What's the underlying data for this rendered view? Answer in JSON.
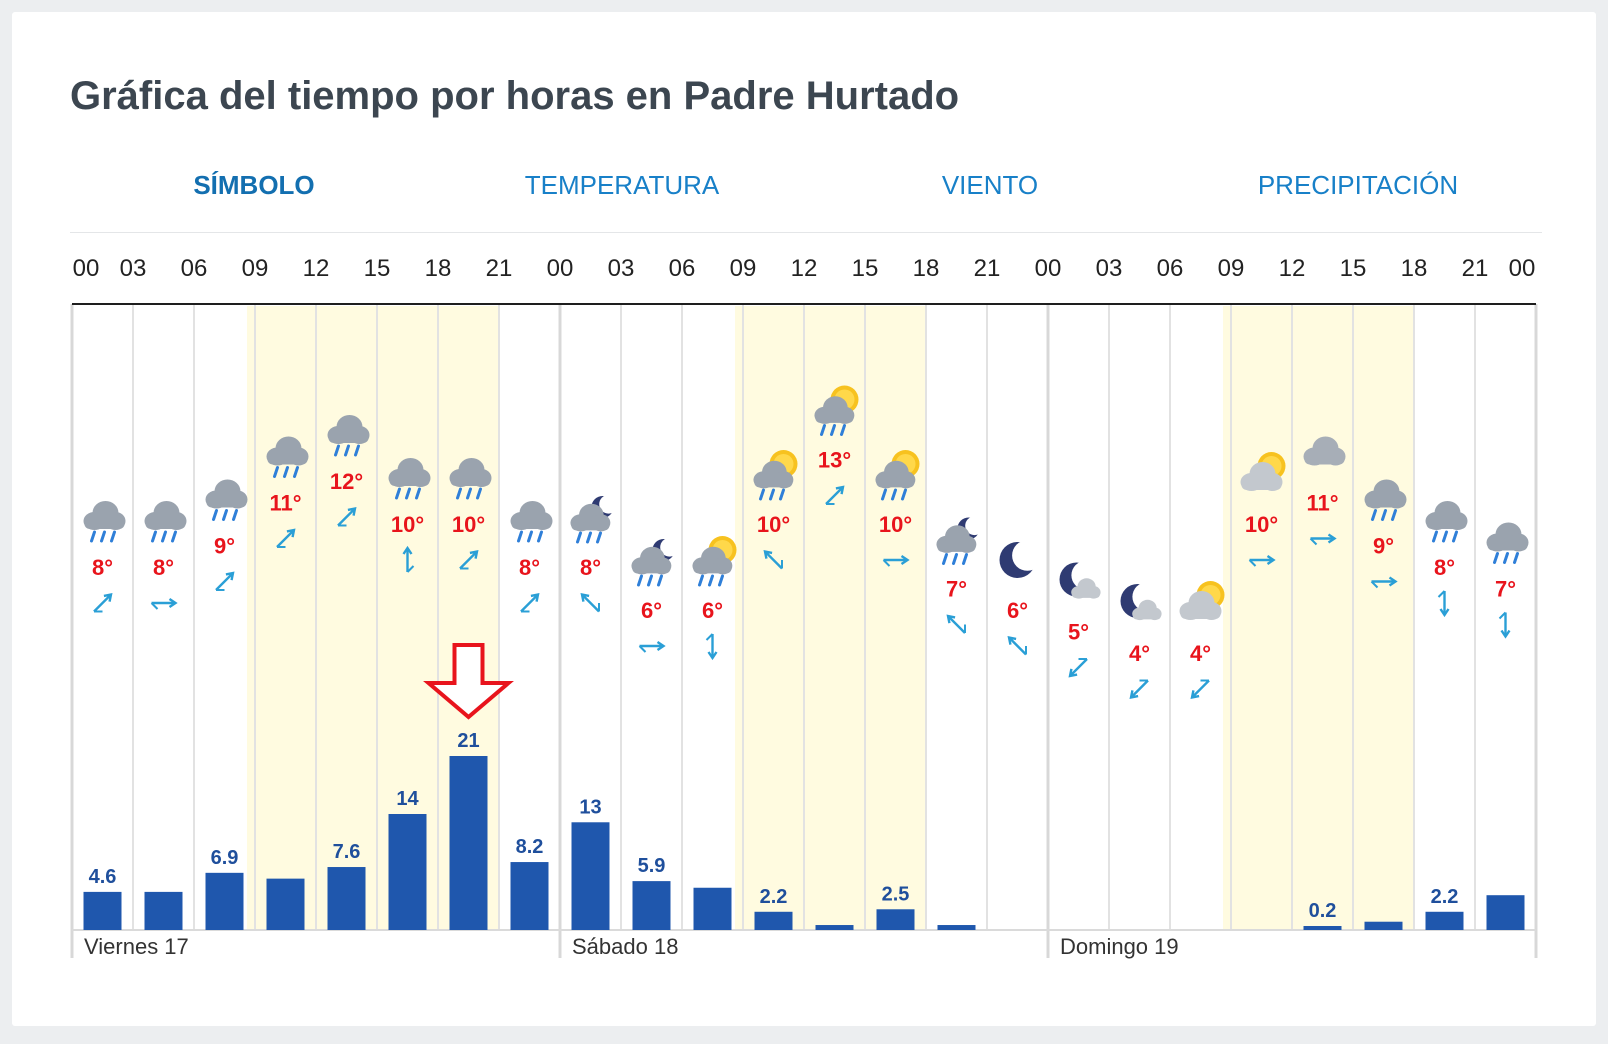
{
  "page_title": "Gráfica del tiempo por horas en Padre Hurtado",
  "tabs": [
    {
      "label": "SÍMBOLO",
      "active": true
    },
    {
      "label": "TEMPERATURA",
      "active": false
    },
    {
      "label": "VIENTO",
      "active": false
    },
    {
      "label": "PRECIPITACIÓN",
      "active": false
    }
  ],
  "colors": {
    "temperature_text": "#e8141c",
    "wind_arrow": "#2a9fd6",
    "precip_bar": "#1f57ad",
    "precip_label": "#1f4f9c",
    "highlight_arrow": "#e8141c",
    "daylight": "#fffbe0"
  },
  "chart_data": {
    "type": "bar",
    "x_tick_labels": [
      "00",
      "03",
      "06",
      "09",
      "12",
      "15",
      "18",
      "21",
      "00",
      "03",
      "06",
      "09",
      "12",
      "15",
      "18",
      "21",
      "00",
      "03",
      "06",
      "09",
      "12",
      "15",
      "18",
      "21",
      "00"
    ],
    "day_labels": [
      "Viernes 17",
      "Sábado 18",
      "Domingo 19"
    ],
    "daylight_slots": [
      [
        3,
        6
      ],
      [
        11,
        13
      ],
      [
        19,
        21
      ]
    ],
    "slots": [
      {
        "icon": "rain-cloud-icon",
        "temp_label": "8°",
        "temp": 8,
        "wind": "northeast-icon",
        "precip": 4.6,
        "precip_label": "4.6"
      },
      {
        "icon": "rain-cloud-icon",
        "temp_label": "8°",
        "temp": 8,
        "wind": "east-icon",
        "precip": 4.6,
        "precip_label": ""
      },
      {
        "icon": "rain-cloud-icon",
        "temp_label": "9°",
        "temp": 9,
        "wind": "northeast-icon",
        "precip": 6.9,
        "precip_label": "6.9"
      },
      {
        "icon": "rain-cloud-icon",
        "temp_label": "11°",
        "temp": 11,
        "wind": "northeast-icon",
        "precip": 6.2,
        "precip_label": ""
      },
      {
        "icon": "rain-cloud-icon",
        "temp_label": "12°",
        "temp": 12,
        "wind": "northeast-icon",
        "precip": 7.6,
        "precip_label": "7.6"
      },
      {
        "icon": "rain-cloud-icon",
        "temp_label": "10°",
        "temp": 10,
        "wind": "north-icon",
        "precip": 14,
        "precip_label": "14"
      },
      {
        "icon": "rain-cloud-icon",
        "temp_label": "10°",
        "temp": 10,
        "wind": "northeast-icon",
        "precip": 21,
        "precip_label": "21"
      },
      {
        "icon": "rain-cloud-icon",
        "temp_label": "8°",
        "temp": 8,
        "wind": "northeast-icon",
        "precip": 8.2,
        "precip_label": "8.2"
      },
      {
        "icon": "night-rain-icon",
        "temp_label": "8°",
        "temp": 8,
        "wind": "northwest-icon",
        "precip": 13,
        "precip_label": "13"
      },
      {
        "icon": "night-rain-icon",
        "temp_label": "6°",
        "temp": 6,
        "wind": "east-icon",
        "precip": 5.9,
        "precip_label": "5.9"
      },
      {
        "icon": "sun-rain-icon",
        "temp_label": "6°",
        "temp": 6,
        "wind": "south-icon",
        "precip": 5.1,
        "precip_label": ""
      },
      {
        "icon": "sun-rain-icon",
        "temp_label": "10°",
        "temp": 10,
        "wind": "northwest-icon",
        "precip": 2.2,
        "precip_label": "2.2"
      },
      {
        "icon": "sun-rain-icon",
        "temp_label": "13°",
        "temp": 13,
        "wind": "northeast-icon",
        "precip": 0.6,
        "precip_label": ""
      },
      {
        "icon": "sun-rain-icon",
        "temp_label": "10°",
        "temp": 10,
        "wind": "east-icon",
        "precip": 2.5,
        "precip_label": "2.5"
      },
      {
        "icon": "night-rain-icon",
        "temp_label": "7°",
        "temp": 7,
        "wind": "northwest-icon",
        "precip": 0.6,
        "precip_label": ""
      },
      {
        "icon": "moon-icon",
        "temp_label": "6°",
        "temp": 6,
        "wind": "northwest-icon",
        "precip": 0,
        "precip_label": ""
      },
      {
        "icon": "night-cloud-icon",
        "temp_label": "5°",
        "temp": 5,
        "wind": "southwest-icon",
        "precip": 0,
        "precip_label": ""
      },
      {
        "icon": "night-cloud-icon",
        "temp_label": "4°",
        "temp": 4,
        "wind": "southwest-icon",
        "precip": 0,
        "precip_label": ""
      },
      {
        "icon": "sun-cloud-icon",
        "temp_label": "4°",
        "temp": 4,
        "wind": "southwest-icon",
        "precip": 0,
        "precip_label": ""
      },
      {
        "icon": "sun-cloud-icon",
        "temp_label": "10°",
        "temp": 10,
        "wind": "east-icon",
        "precip": 0,
        "precip_label": ""
      },
      {
        "icon": "cloud-icon",
        "temp_label": "11°",
        "temp": 11,
        "wind": "east-icon",
        "precip": 0.2,
        "precip_label": "0.2"
      },
      {
        "icon": "rain-cloud-icon",
        "temp_label": "9°",
        "temp": 9,
        "wind": "east-icon",
        "precip": 1.0,
        "precip_label": ""
      },
      {
        "icon": "rain-cloud-icon",
        "temp_label": "8°",
        "temp": 8,
        "wind": "south-icon",
        "precip": 2.2,
        "precip_label": "2.2"
      },
      {
        "icon": "rain-cloud-icon",
        "temp_label": "7°",
        "temp": 7,
        "wind": "south-icon",
        "precip": 4.2,
        "precip_label": ""
      }
    ],
    "highlight_slot": 6
  }
}
